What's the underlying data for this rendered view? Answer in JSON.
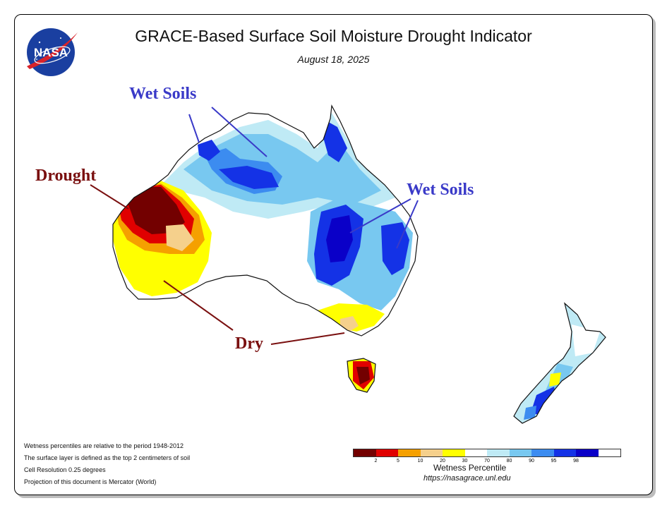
{
  "header": {
    "title": "GRACE-Based Surface Soil Moisture Drought Indicator",
    "date": "August 18, 2025",
    "logo_text": "NASA"
  },
  "annotations": {
    "wet_soils_north": "Wet Soils",
    "wet_soils_east": "Wet Soils",
    "drought": "Drought",
    "dry": "Dry",
    "wet_color": "#3a3ac8",
    "dry_color": "#7a1010"
  },
  "notes": [
    "Wetness percentiles are relative to the period 1948-2012",
    "The surface layer is defined as the top 2 centimeters of soil",
    "Cell Resolution 0.25 degrees",
    "Projection of this document is Mercator (World)"
  ],
  "legend": {
    "title": "Wetness Percentile",
    "url": "https://nasagrace.unl.edu",
    "colors": [
      "#730000",
      "#e00000",
      "#f5a000",
      "#f5d08c",
      "#ffff00",
      "#ffffff",
      "#bfeaf5",
      "#78c8f0",
      "#3c8cf0",
      "#1432e6",
      "#0a00c8"
    ],
    "ticks": [
      "2",
      "5",
      "10",
      "20",
      "30",
      "70",
      "80",
      "90",
      "95",
      "98"
    ]
  }
}
